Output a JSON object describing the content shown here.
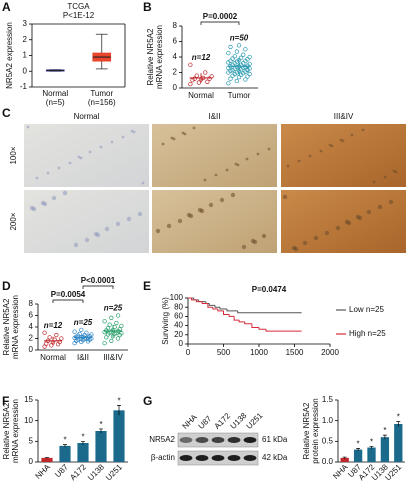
{
  "figure": {
    "panel_labels": [
      "A",
      "B",
      "C",
      "D",
      "E",
      "F",
      "G"
    ]
  },
  "micrographs": {
    "columns": [
      "Normal",
      "I&II",
      "III&IV"
    ],
    "rows": [
      "100×",
      "200×"
    ]
  },
  "blot": {
    "lanes": [
      "NHA",
      "U87",
      "A172",
      "U138",
      "U251"
    ],
    "bands": [
      {
        "name": "NR5A2",
        "size": "61 kDa"
      },
      {
        "name": "β-actin",
        "size": "42 kDa"
      }
    ]
  },
  "chart_data": [
    {
      "type": "box",
      "title": "TCGA",
      "subtitle": "P<1E-12",
      "ylabel": [
        "NR5A2 expression"
      ],
      "ylim": [
        -1,
        3
      ],
      "yticks": [
        -1,
        0,
        1,
        2,
        3
      ],
      "boxes": [
        {
          "name": "Normal",
          "note": "(n=5)",
          "color": "#3b3bb0",
          "whisker_low": 0.0,
          "q1": 0.02,
          "median": 0.05,
          "q3": 0.08,
          "whisker_high": 0.1
        },
        {
          "name": "Tumor",
          "note": "(n=156)",
          "color": "#e8452c",
          "whisker_low": 0.15,
          "q1": 0.65,
          "median": 0.9,
          "q3": 1.15,
          "whisker_high": 2.35
        }
      ]
    },
    {
      "type": "strip",
      "ylabel": [
        "Relative NR5A2",
        "mRNA expression"
      ],
      "ylim": [
        0,
        8
      ],
      "yticks": [
        0,
        2,
        4,
        6,
        8
      ],
      "pvalues": [
        "P=0.0002"
      ],
      "groups": [
        {
          "name": "Normal",
          "n_label": "n=12",
          "color": "#c0282d",
          "mean": 1.3,
          "sd": 0.6,
          "values": [
            0.5,
            0.7,
            0.8,
            1.0,
            1.1,
            1.2,
            1.2,
            1.3,
            1.5,
            1.6,
            2.0,
            3.0
          ]
        },
        {
          "name": "Tumor",
          "n_label": "n=50",
          "color": "#2a9ab0",
          "mean": 2.8,
          "sd": 1.1,
          "values": [
            0.6,
            0.9,
            1.1,
            1.2,
            1.4,
            1.5,
            1.6,
            1.7,
            1.8,
            1.8,
            1.9,
            2.0,
            2.0,
            2.1,
            2.2,
            2.2,
            2.3,
            2.3,
            2.4,
            2.5,
            2.5,
            2.6,
            2.6,
            2.7,
            2.7,
            2.8,
            2.8,
            2.9,
            3.0,
            3.0,
            3.1,
            3.2,
            3.2,
            3.3,
            3.4,
            3.5,
            3.5,
            3.6,
            3.7,
            3.8,
            3.9,
            4.0,
            4.1,
            4.3,
            4.5,
            4.7,
            5.0,
            5.3,
            5.5,
            2.4
          ]
        }
      ]
    },
    {
      "type": "strip",
      "ylabel": [
        "Relative NR5A2",
        "mRNA expression"
      ],
      "ylim": [
        0,
        8
      ],
      "yticks": [
        0,
        2,
        4,
        6,
        8
      ],
      "pvalues": [
        "P=0.0054",
        "P<0.0001"
      ],
      "groups": [
        {
          "name": "Normal",
          "n_label": "n=12",
          "color": "#c0282d",
          "mean": 1.6,
          "sd": 0.7,
          "values": [
            0.6,
            0.8,
            1.0,
            1.1,
            1.3,
            1.4,
            1.6,
            1.8,
            2.0,
            2.2,
            2.6,
            3.0
          ]
        },
        {
          "name": "I&II",
          "n_label": "n=25",
          "color": "#2f86c5",
          "mean": 2.2,
          "sd": 0.5,
          "values": [
            1.2,
            1.4,
            1.5,
            1.6,
            1.7,
            1.8,
            1.8,
            1.9,
            2.0,
            2.0,
            2.1,
            2.1,
            2.2,
            2.2,
            2.3,
            2.3,
            2.4,
            2.5,
            2.6,
            2.7,
            2.8,
            3.0,
            3.2,
            3.5,
            1.9
          ]
        },
        {
          "name": "III&IV",
          "n_label": "n=25",
          "color": "#2aa06b",
          "mean": 3.3,
          "sd": 1.1,
          "values": [
            1.2,
            1.6,
            2.0,
            2.2,
            2.4,
            2.6,
            2.7,
            2.8,
            2.9,
            3.0,
            3.0,
            3.1,
            3.2,
            3.3,
            3.4,
            3.5,
            3.6,
            3.8,
            4.0,
            4.2,
            4.4,
            4.7,
            5.0,
            5.6,
            6.0
          ]
        }
      ]
    },
    {
      "type": "line",
      "step": true,
      "subtitle": "P=0.0474",
      "ylabel": [
        "Surviving (%)"
      ],
      "xlim": [
        0,
        2000
      ],
      "xticks": [
        0,
        500,
        1000,
        1500,
        2000
      ],
      "ylim": [
        0,
        100
      ],
      "yticks": [
        0,
        20,
        40,
        60,
        80,
        100
      ],
      "series": [
        {
          "name": "Low n=25",
          "color": "#555555",
          "x": [
            0,
            80,
            150,
            250,
            300,
            380,
            450,
            550,
            700,
            1600
          ],
          "y": [
            100,
            96,
            92,
            88,
            84,
            80,
            76,
            72,
            68,
            68
          ]
        },
        {
          "name": "High n=25",
          "color": "#d62a3a",
          "x": [
            0,
            50,
            120,
            200,
            280,
            350,
            420,
            500,
            580,
            650,
            720,
            800,
            900,
            1000,
            1100,
            1600
          ],
          "y": [
            100,
            96,
            92,
            88,
            80,
            76,
            72,
            64,
            60,
            52,
            48,
            44,
            36,
            32,
            28,
            28
          ]
        }
      ]
    },
    {
      "type": "bar",
      "ylabel": [
        "Relative NR5A2",
        "mRNA expression"
      ],
      "ylim": [
        0,
        15
      ],
      "yticks": [
        0,
        5,
        10,
        15
      ],
      "categories": [
        "NHA",
        "U87",
        "A172",
        "U138",
        "U251"
      ],
      "values": [
        1,
        3.9,
        4.6,
        7.5,
        12.5
      ],
      "errors": [
        0.1,
        0.3,
        0.4,
        0.5,
        1.2
      ],
      "colors": [
        "#c0282d",
        "#1b6a8c",
        "#1b6a8c",
        "#1b6a8c",
        "#1b6a8c"
      ],
      "annotations": [
        {
          "text": "*",
          "category": "U87"
        },
        {
          "text": "*",
          "category": "A172"
        },
        {
          "text": "*",
          "category": "U138"
        },
        {
          "text": "*",
          "category": "U251"
        }
      ]
    },
    {
      "type": "bar",
      "ylabel": [
        "Relative NR5A2",
        "protein expression"
      ],
      "ylim": [
        0,
        1.5
      ],
      "yticks": [
        {
          "value": 0,
          "label": "0.0"
        },
        0.5,
        {
          "value": 1,
          "label": "1.0"
        },
        1.5
      ],
      "categories": [
        "NHA",
        "U87",
        "A172",
        "U138",
        "U251"
      ],
      "values": [
        0.1,
        0.3,
        0.35,
        0.6,
        0.92
      ],
      "errors": [
        0.02,
        0.03,
        0.03,
        0.05,
        0.06
      ],
      "colors": [
        "#c0282d",
        "#1b6a8c",
        "#1b6a8c",
        "#1b6a8c",
        "#1b6a8c"
      ],
      "annotations": [
        {
          "text": "*",
          "category": "U87"
        },
        {
          "text": "*",
          "category": "A172"
        },
        {
          "text": "*",
          "category": "U138"
        },
        {
          "text": "*",
          "category": "U251"
        }
      ]
    }
  ]
}
